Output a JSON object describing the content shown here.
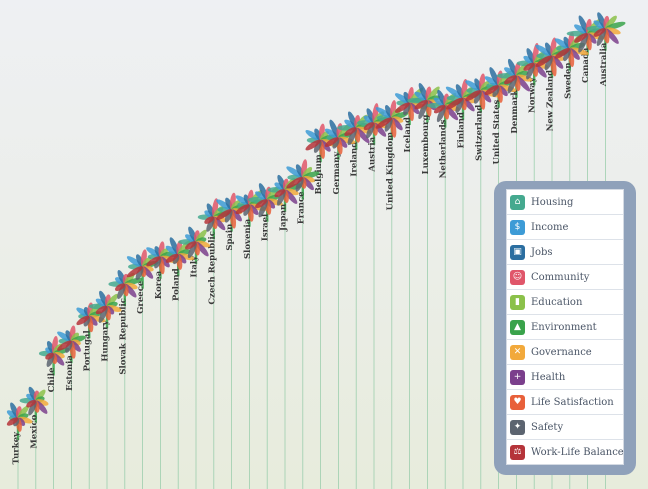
{
  "countries": [
    {
      "name": "Turkey",
      "score": 0.0
    },
    {
      "name": "Mexico",
      "score": 0.07
    },
    {
      "name": "Chile",
      "score": 0.26
    },
    {
      "name": "Estonia",
      "score": 0.31
    },
    {
      "name": "Portugal",
      "score": 0.41
    },
    {
      "name": "Hungary",
      "score": 0.45
    },
    {
      "name": "Slovak Republic",
      "score": 0.54
    },
    {
      "name": "Greece",
      "score": 0.61
    },
    {
      "name": "Korea",
      "score": 0.65
    },
    {
      "name": "Poland",
      "score": 0.66
    },
    {
      "name": "Italy",
      "score": 0.71
    },
    {
      "name": "Czech Republic",
      "score": 0.81
    },
    {
      "name": "Spain",
      "score": 0.84
    },
    {
      "name": "Slovenia",
      "score": 0.86
    },
    {
      "name": "Israel",
      "score": 0.88
    },
    {
      "name": "Japan",
      "score": 0.92
    },
    {
      "name": "France",
      "score": 0.97
    },
    {
      "name": "Belgium",
      "score": 1.12
    },
    {
      "name": "Germany",
      "score": 1.13
    },
    {
      "name": "Ireland",
      "score": 1.17
    },
    {
      "name": "Austria",
      "score": 1.19
    },
    {
      "name": "United Kingdom",
      "score": 1.21
    },
    {
      "name": "Iceland",
      "score": 1.27
    },
    {
      "name": "Luxembourg",
      "score": 1.28
    },
    {
      "name": "Netherlands",
      "score": 1.26
    },
    {
      "name": "Finland",
      "score": 1.29
    },
    {
      "name": "Switzerland",
      "score": 1.32
    },
    {
      "name": "United States",
      "score": 1.34
    },
    {
      "name": "Denmark",
      "score": 1.38
    },
    {
      "name": "Norway",
      "score": 1.43
    },
    {
      "name": "New Zealand",
      "score": 1.46
    },
    {
      "name": "Sweden",
      "score": 1.49
    },
    {
      "name": "Canada",
      "score": 1.55
    },
    {
      "name": "Australia",
      "score": 1.57
    }
  ],
  "topics": [
    {
      "label": "Housing",
      "color": "#45a98f",
      "icon": "house-icon",
      "glyph": "⌂"
    },
    {
      "label": "Income",
      "color": "#3d9bd6",
      "icon": "money-icon",
      "glyph": "$"
    },
    {
      "label": "Jobs",
      "color": "#2b6ea0",
      "icon": "briefcase-icon",
      "glyph": "▣"
    },
    {
      "label": "Community",
      "color": "#e0566a",
      "icon": "people-icon",
      "glyph": "☺"
    },
    {
      "label": "Education",
      "color": "#8bc14a",
      "icon": "book-icon",
      "glyph": "▮"
    },
    {
      "label": "Environment",
      "color": "#3aa34b",
      "icon": "tree-icon",
      "glyph": "▲"
    },
    {
      "label": "Governance",
      "color": "#f2a93b",
      "icon": "handshake-icon",
      "glyph": "✕"
    },
    {
      "label": "Health",
      "color": "#7b3f8c",
      "icon": "health-cross-icon",
      "glyph": "+"
    },
    {
      "label": "Life Satisfaction",
      "color": "#e8603a",
      "icon": "heart-icon",
      "glyph": "♥"
    },
    {
      "label": "Safety",
      "color": "#5c6470",
      "icon": "walking-person-icon",
      "glyph": "✦"
    },
    {
      "label": "Work-Life Balance",
      "color": "#b5343a",
      "icon": "scales-icon",
      "glyph": "⚖"
    }
  ]
}
